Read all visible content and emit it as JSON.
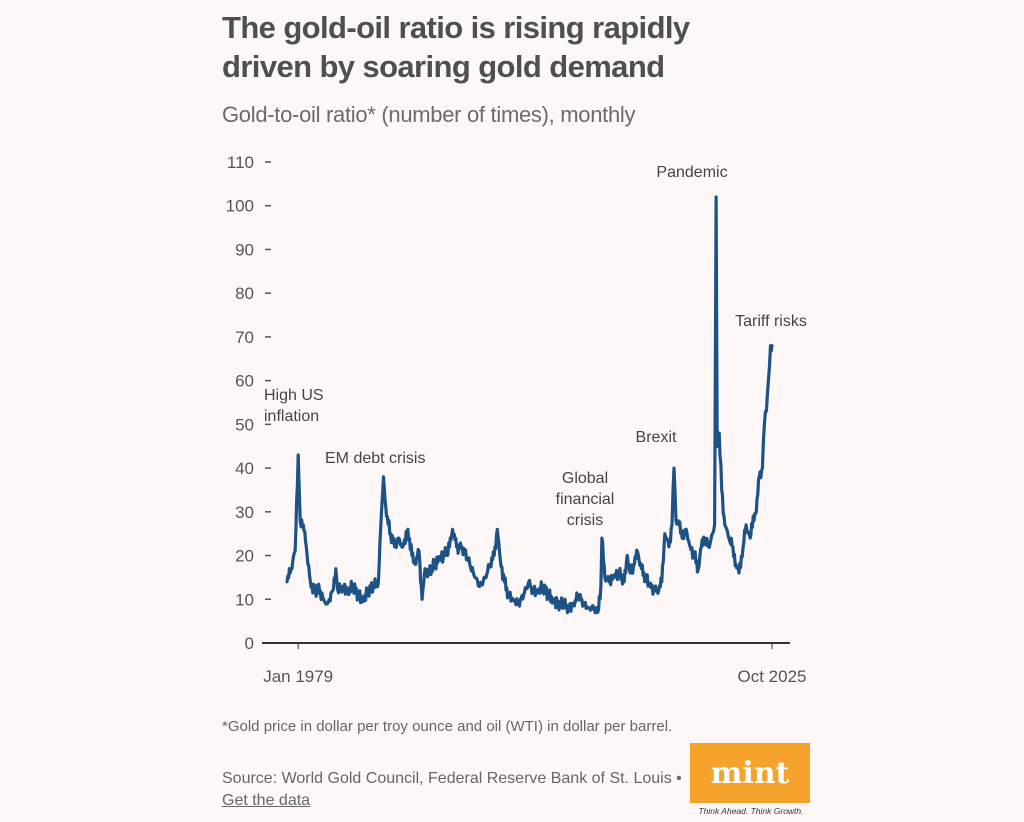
{
  "header": {
    "title": "The gold-oil ratio is rising rapidly driven by soaring gold demand",
    "subtitle": "Gold-to-oil ratio* (number of times), monthly"
  },
  "footer": {
    "footnote": "*Gold price in dollar per troy ounce and oil (WTI) in dollar per barrel.",
    "source_prefix": "Source: World Gold Council, Federal Reserve Bank of St. Louis • ",
    "source_link": "Get the data"
  },
  "logo": {
    "name": "mint",
    "tagline": "Think Ahead. Think Growth.",
    "color": "#f5a32c"
  },
  "chart_data": {
    "type": "line",
    "title": "The gold-oil ratio is rising rapidly driven by soaring gold demand",
    "subtitle": "Gold-to-oil ratio* (number of times), monthly",
    "xlabel": "",
    "ylabel": "",
    "x_tick_labels": [
      "Jan 1979",
      "Oct 2025"
    ],
    "x_range": [
      "1978-01",
      "2025-10"
    ],
    "ylim": [
      0,
      110
    ],
    "y_ticks": [
      0,
      10,
      20,
      30,
      40,
      50,
      60,
      70,
      80,
      90,
      100,
      110
    ],
    "grid": false,
    "line_color": "#1c5285",
    "series": [
      {
        "name": "Gold-to-oil ratio",
        "points": [
          [
            1978.0,
            14
          ],
          [
            1978.4,
            17
          ],
          [
            1978.8,
            21
          ],
          [
            1979.1,
            43
          ],
          [
            1979.3,
            28
          ],
          [
            1979.6,
            27
          ],
          [
            1979.9,
            22
          ],
          [
            1980.3,
            14
          ],
          [
            1980.7,
            12
          ],
          [
            1981.2,
            12
          ],
          [
            1981.6,
            10
          ],
          [
            1982.0,
            9
          ],
          [
            1982.5,
            12
          ],
          [
            1982.8,
            17
          ],
          [
            1983.0,
            12
          ],
          [
            1983.5,
            13
          ],
          [
            1984.0,
            12
          ],
          [
            1984.5,
            13
          ],
          [
            1985.0,
            11
          ],
          [
            1985.5,
            10
          ],
          [
            1986.0,
            12
          ],
          [
            1986.5,
            13
          ],
          [
            1987.0,
            14
          ],
          [
            1987.3,
            30
          ],
          [
            1987.5,
            38
          ],
          [
            1987.8,
            29
          ],
          [
            1988.2,
            25
          ],
          [
            1988.6,
            22
          ],
          [
            1989.0,
            24
          ],
          [
            1989.4,
            22
          ],
          [
            1989.9,
            26
          ],
          [
            1990.3,
            20
          ],
          [
            1990.6,
            18
          ],
          [
            1991.0,
            21
          ],
          [
            1991.3,
            10
          ],
          [
            1991.6,
            17
          ],
          [
            1992.0,
            16
          ],
          [
            1992.5,
            18
          ],
          [
            1993.0,
            19
          ],
          [
            1993.5,
            20
          ],
          [
            1994.0,
            22
          ],
          [
            1994.3,
            26
          ],
          [
            1994.7,
            22
          ],
          [
            1995.0,
            22
          ],
          [
            1995.5,
            21
          ],
          [
            1996.0,
            18
          ],
          [
            1996.5,
            15
          ],
          [
            1997.0,
            13
          ],
          [
            1997.5,
            15
          ],
          [
            1998.0,
            18
          ],
          [
            1998.4,
            20
          ],
          [
            1998.7,
            26
          ],
          [
            1999.0,
            19
          ],
          [
            1999.4,
            14
          ],
          [
            1999.8,
            11
          ],
          [
            2000.3,
            10
          ],
          [
            2000.8,
            9
          ],
          [
            2001.3,
            11
          ],
          [
            2001.8,
            14
          ],
          [
            2002.2,
            12
          ],
          [
            2002.7,
            12
          ],
          [
            2003.2,
            13
          ],
          [
            2003.7,
            11
          ],
          [
            2004.2,
            10
          ],
          [
            2004.7,
            9
          ],
          [
            2005.2,
            9
          ],
          [
            2005.7,
            8
          ],
          [
            2006.2,
            9
          ],
          [
            2006.7,
            11
          ],
          [
            2007.2,
            9
          ],
          [
            2007.7,
            8
          ],
          [
            2008.2,
            8
          ],
          [
            2008.6,
            7
          ],
          [
            2008.9,
            13
          ],
          [
            2009.0,
            24
          ],
          [
            2009.3,
            15
          ],
          [
            2009.7,
            14
          ],
          [
            2010.2,
            15
          ],
          [
            2010.7,
            16
          ],
          [
            2011.2,
            14
          ],
          [
            2011.5,
            20
          ],
          [
            2011.8,
            16
          ],
          [
            2012.2,
            18
          ],
          [
            2012.5,
            21
          ],
          [
            2012.9,
            17
          ],
          [
            2013.3,
            15
          ],
          [
            2013.7,
            13
          ],
          [
            2014.2,
            12
          ],
          [
            2014.6,
            12
          ],
          [
            2014.9,
            14
          ],
          [
            2015.2,
            25
          ],
          [
            2015.6,
            22
          ],
          [
            2015.9,
            27
          ],
          [
            2016.1,
            40
          ],
          [
            2016.3,
            28
          ],
          [
            2016.6,
            27
          ],
          [
            2016.9,
            24
          ],
          [
            2017.3,
            26
          ],
          [
            2017.7,
            22
          ],
          [
            2018.1,
            20
          ],
          [
            2018.5,
            17
          ],
          [
            2018.8,
            22
          ],
          [
            2019.1,
            24
          ],
          [
            2019.5,
            22
          ],
          [
            2019.9,
            25
          ],
          [
            2020.1,
            27
          ],
          [
            2020.25,
            102
          ],
          [
            2020.35,
            45
          ],
          [
            2020.55,
            48
          ],
          [
            2020.8,
            35
          ],
          [
            2021.1,
            27
          ],
          [
            2021.5,
            24
          ],
          [
            2021.9,
            22
          ],
          [
            2022.2,
            18
          ],
          [
            2022.5,
            16
          ],
          [
            2022.9,
            22
          ],
          [
            2023.2,
            27
          ],
          [
            2023.6,
            24
          ],
          [
            2023.9,
            29
          ],
          [
            2024.2,
            30
          ],
          [
            2024.5,
            38
          ],
          [
            2024.8,
            40
          ],
          [
            2025.0,
            50
          ],
          [
            2025.2,
            53
          ],
          [
            2025.4,
            60
          ],
          [
            2025.6,
            68
          ],
          [
            2025.75,
            68
          ]
        ]
      }
    ],
    "annotations": [
      {
        "text": [
          "High US",
          "inflation"
        ],
        "x": 1979.1,
        "y": 43
      },
      {
        "text": [
          "EM debt crisis"
        ],
        "x": 1987.5,
        "y": 38
      },
      {
        "text": [
          "Global",
          "financial",
          "crisis"
        ],
        "x": 2009.0,
        "y": 24
      },
      {
        "text": [
          "Brexit"
        ],
        "x": 2016.1,
        "y": 40
      },
      {
        "text": [
          "Pandemic"
        ],
        "x": 2020.25,
        "y": 102
      },
      {
        "text": [
          "Tariff risks"
        ],
        "x": 2025.6,
        "y": 68
      }
    ]
  }
}
